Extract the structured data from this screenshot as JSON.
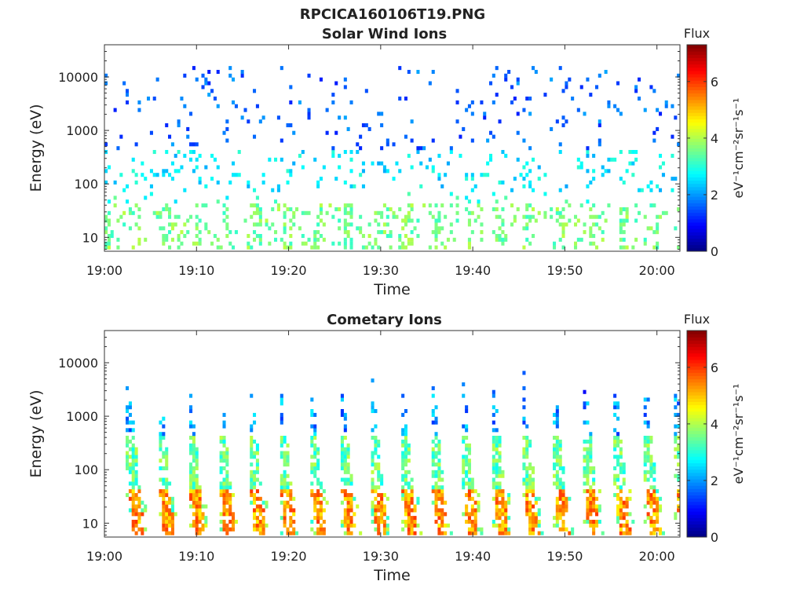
{
  "figure": {
    "filename": "RPCICA160106T19.PNG"
  },
  "chart_data": [
    {
      "type": "heatmap",
      "title": "Solar Wind Ions",
      "xlabel": "Time",
      "ylabel": "Energy (eV)",
      "x_ticks": [
        "19:00",
        "19:10",
        "19:20",
        "19:30",
        "19:40",
        "19:50",
        "20:00"
      ],
      "x_range_minutes": [
        0,
        62.5
      ],
      "y_ticks": [
        10,
        100,
        1000,
        10000
      ],
      "y_tick_labels": [
        "10",
        "100",
        "1000",
        "10000"
      ],
      "y_scale": "log",
      "y_range": [
        5.5,
        40000
      ],
      "colorbar": {
        "label": "Flux",
        "units": "eV⁻¹cm⁻²sr⁻¹s⁻¹",
        "ticks": [
          0,
          2,
          4,
          6
        ],
        "range": [
          0,
          7.3
        ],
        "colormap": "jet"
      },
      "pattern": {
        "description_hidden": true,
        "seed": 11,
        "bands": [
          {
            "e_min": 9,
            "e_max": 40,
            "period_min": 3.3,
            "level": 4.0
          },
          {
            "e_min": 60,
            "e_max": 400,
            "level": 2.7
          },
          {
            "e_min": 400,
            "e_max": 15000,
            "level": 1.7
          }
        ]
      }
    },
    {
      "type": "heatmap",
      "title": "Cometary Ions",
      "xlabel": "Time",
      "ylabel": "Energy (eV)",
      "x_ticks": [
        "19:00",
        "19:10",
        "19:20",
        "19:30",
        "19:40",
        "19:50",
        "20:00"
      ],
      "x_range_minutes": [
        0,
        62.5
      ],
      "y_ticks": [
        10,
        100,
        1000,
        10000
      ],
      "y_tick_labels": [
        "10",
        "100",
        "1000",
        "10000"
      ],
      "y_scale": "log",
      "y_range": [
        5.5,
        40000
      ],
      "colorbar": {
        "label": "Flux",
        "units": "eV⁻¹cm⁻²sr⁻¹s⁻¹",
        "ticks": [
          0,
          2,
          4,
          6
        ],
        "range": [
          0,
          7.3
        ],
        "colormap": "jet"
      },
      "pattern": {
        "seed": 29,
        "burst_period_min": 3.3,
        "burst_start_min": 2.3,
        "peak_level_low_energy": 5.6,
        "peak_level_mid_energy": 3.6,
        "peak_level_high_energy": 1.5
      }
    }
  ]
}
